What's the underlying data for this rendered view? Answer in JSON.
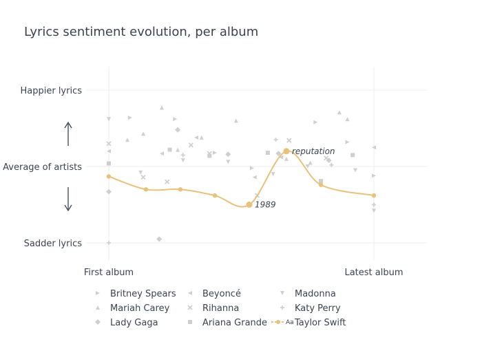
{
  "chart_data": {
    "type": "line",
    "title": "Lyrics sentiment evolution, per album",
    "xlabel": "",
    "ylabel": "",
    "x_tick_labels": [
      {
        "x": 0,
        "label": "First album"
      },
      {
        "x": 1,
        "label": "Latest album"
      }
    ],
    "y_tick_labels": [
      {
        "y": 1,
        "label": "Happier lyrics"
      },
      {
        "y": 0,
        "label": "Average of artists"
      },
      {
        "y": -1,
        "label": "Sadder lyrics"
      }
    ],
    "xlim": [
      0,
      1
    ],
    "ylim": [
      -1.2,
      1.2
    ],
    "grid": true,
    "legend_position": "bottom",
    "up_arrow_icon": "arrow-up-icon",
    "down_arrow_icon": "arrow-down-icon",
    "highlight_color": "#e8c17a",
    "background_color": "#cfcfcf",
    "series": [
      {
        "name": "Britney Spears",
        "symbol": "triangle-right",
        "points": [
          [
            0.08,
            0.64
          ],
          [
            0.25,
            0.62
          ],
          [
            0.4,
            0.18
          ],
          [
            0.54,
            -0.02
          ],
          [
            0.78,
            0.58
          ],
          [
            0.9,
            0.32
          ],
          [
            1.0,
            -0.12
          ]
        ]
      },
      {
        "name": "Beyoncé",
        "symbol": "triangle-left",
        "points": [
          [
            0.0,
            0.2
          ],
          [
            0.2,
            0.17
          ],
          [
            0.33,
            0.38
          ],
          [
            0.55,
            -0.14
          ],
          [
            0.65,
            0.12
          ],
          [
            1.0,
            0.25
          ]
        ]
      },
      {
        "name": "Madonna",
        "symbol": "triangle-down",
        "points": [
          [
            0.0,
            0.62
          ],
          [
            0.12,
            -0.08
          ],
          [
            0.28,
            0.08
          ],
          [
            0.45,
            0.06
          ],
          [
            0.62,
            -0.1
          ],
          [
            0.75,
            0.0
          ],
          [
            0.93,
            -0.05
          ],
          [
            1.0,
            -0.58
          ]
        ]
      },
      {
        "name": "Mariah Carey",
        "symbol": "triangle-up",
        "points": [
          [
            0.07,
            0.35
          ],
          [
            0.13,
            0.43
          ],
          [
            0.2,
            0.77
          ],
          [
            0.26,
            0.22
          ],
          [
            0.35,
            0.38
          ],
          [
            0.48,
            0.6
          ],
          [
            0.67,
            0.1
          ],
          [
            0.76,
            0.05
          ],
          [
            0.87,
            0.71
          ],
          [
            0.9,
            0.62
          ]
        ]
      },
      {
        "name": "Rihanna",
        "symbol": "x",
        "points": [
          [
            0.0,
            0.3
          ],
          [
            0.13,
            -0.14
          ],
          [
            0.22,
            -0.2
          ],
          [
            0.31,
            0.28
          ],
          [
            0.38,
            0.17
          ],
          [
            0.56,
            -0.38
          ],
          [
            0.68,
            0.34
          ],
          [
            0.82,
            0.11
          ]
        ]
      },
      {
        "name": "Katy Perry",
        "symbol": "cross",
        "points": [
          [
            0.0,
            -1.0
          ],
          [
            0.28,
            0.15
          ],
          [
            0.63,
            0.35
          ],
          [
            0.84,
            0.02
          ],
          [
            1.0,
            -0.5
          ]
        ]
      },
      {
        "name": "Lady Gaga",
        "symbol": "diamond",
        "points": [
          [
            0.0,
            -0.33
          ],
          [
            0.26,
            0.48
          ],
          [
            0.45,
            0.16
          ],
          [
            0.64,
            0.17
          ],
          [
            0.83,
            0.08
          ],
          [
            0.19,
            -0.95
          ]
        ]
      },
      {
        "name": "Ariana Grande",
        "symbol": "square",
        "points": [
          [
            0.0,
            0.04
          ],
          [
            0.23,
            0.22
          ],
          [
            0.38,
            0.14
          ],
          [
            0.6,
            0.18
          ],
          [
            0.8,
            -0.19
          ],
          [
            0.92,
            0.15
          ]
        ]
      },
      {
        "name": "Taylor Swift",
        "symbol": "circle-line",
        "highlight": true,
        "points": [
          [
            0.0,
            -0.13
          ],
          [
            0.14,
            -0.3
          ],
          [
            0.27,
            -0.3
          ],
          [
            0.4,
            -0.38
          ],
          [
            0.53,
            -0.5
          ],
          [
            0.67,
            0.2
          ],
          [
            0.8,
            -0.24
          ],
          [
            1.0,
            -0.38
          ]
        ]
      }
    ],
    "annotations": [
      {
        "text": "1989",
        "x": 0.53,
        "y": -0.5
      },
      {
        "text": "reputation",
        "x": 0.67,
        "y": 0.2
      }
    ]
  }
}
